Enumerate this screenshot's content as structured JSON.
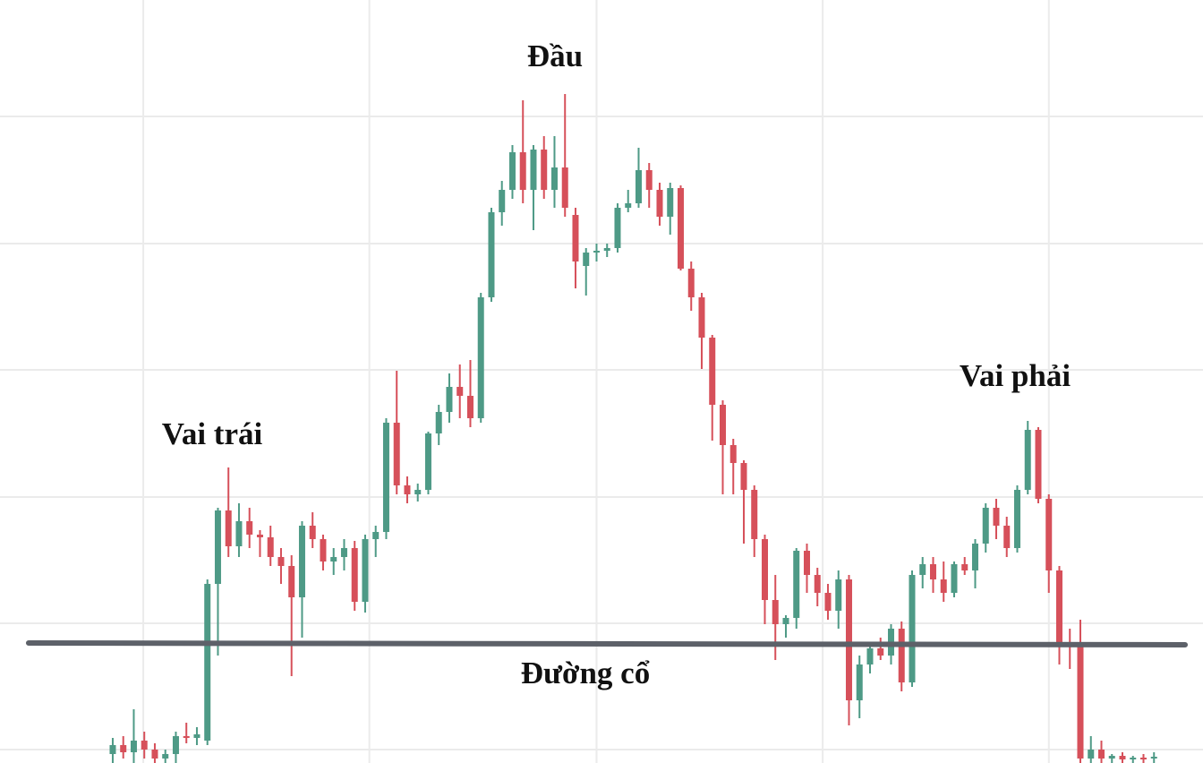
{
  "chart_data": {
    "type": "candlestick",
    "annotations": [
      "Vai trái",
      "Đầu",
      "Vai phải",
      "Đường cổ"
    ],
    "up_color": "#4e9a86",
    "down_color": "#d6505a",
    "neckline_color": "#5d6169",
    "grid": true,
    "xlim": [
      -10.72,
      103.66
    ],
    "ylim": [
      0,
      852
    ],
    "xticks": [
      2.9,
      24.4,
      46.0,
      67.5,
      89.0
    ],
    "yticks": [
      15,
      156,
      297,
      439,
      580,
      722
    ],
    "neckline": [
      [
        -8.0,
        134
      ],
      [
        101.96,
        132
      ]
    ],
    "candles": [
      [
        10,
        28,
        0,
        20
      ],
      [
        20,
        30,
        5,
        12
      ],
      [
        12,
        60,
        0,
        25
      ],
      [
        25,
        35,
        5,
        15
      ],
      [
        15,
        22,
        0,
        5
      ],
      [
        5,
        15,
        0,
        10
      ],
      [
        10,
        35,
        0,
        30
      ],
      [
        30,
        45,
        22,
        28
      ],
      [
        28,
        40,
        20,
        32
      ],
      [
        25,
        205,
        20,
        200
      ],
      [
        200,
        285,
        120,
        282
      ],
      [
        282,
        330,
        230,
        242
      ],
      [
        242,
        290,
        230,
        270
      ],
      [
        270,
        285,
        240,
        255
      ],
      [
        255,
        260,
        230,
        252
      ],
      [
        252,
        265,
        220,
        230
      ],
      [
        230,
        240,
        200,
        220
      ],
      [
        220,
        232,
        97,
        185
      ],
      [
        185,
        270,
        140,
        265
      ],
      [
        265,
        280,
        240,
        250
      ],
      [
        250,
        255,
        215,
        225
      ],
      [
        225,
        240,
        210,
        230
      ],
      [
        230,
        250,
        215,
        240
      ],
      [
        240,
        248,
        170,
        180
      ],
      [
        180,
        255,
        168,
        250
      ],
      [
        250,
        265,
        230,
        258
      ],
      [
        258,
        385,
        250,
        380
      ],
      [
        380,
        438,
        300,
        310
      ],
      [
        310,
        320,
        290,
        300
      ],
      [
        300,
        312,
        292,
        305
      ],
      [
        305,
        370,
        300,
        368
      ],
      [
        368,
        400,
        355,
        392
      ],
      [
        392,
        435,
        380,
        420
      ],
      [
        420,
        445,
        385,
        410
      ],
      [
        410,
        450,
        375,
        385
      ],
      [
        385,
        525,
        380,
        520
      ],
      [
        520,
        620,
        515,
        615
      ],
      [
        615,
        650,
        600,
        640
      ],
      [
        640,
        690,
        630,
        682
      ],
      [
        682,
        740,
        625,
        640
      ],
      [
        640,
        690,
        595,
        685
      ],
      [
        685,
        700,
        630,
        640
      ],
      [
        640,
        700,
        620,
        665
      ],
      [
        665,
        747,
        610,
        620
      ],
      [
        612,
        620,
        530,
        560
      ],
      [
        555,
        575,
        522,
        570
      ],
      [
        570,
        580,
        560,
        572
      ],
      [
        572,
        580,
        565,
        575
      ],
      [
        575,
        625,
        570,
        620
      ],
      [
        620,
        640,
        615,
        625
      ],
      [
        625,
        687,
        620,
        662
      ],
      [
        662,
        670,
        620,
        640
      ],
      [
        640,
        648,
        600,
        610
      ],
      [
        610,
        648,
        590,
        642
      ],
      [
        642,
        645,
        550,
        552
      ],
      [
        552,
        560,
        505,
        520
      ],
      [
        520,
        525,
        440,
        475
      ],
      [
        475,
        478,
        360,
        400
      ],
      [
        400,
        405,
        300,
        355
      ],
      [
        355,
        362,
        300,
        335
      ],
      [
        335,
        338,
        245,
        305
      ],
      [
        305,
        310,
        230,
        250
      ],
      [
        250,
        255,
        155,
        182
      ],
      [
        182,
        210,
        115,
        155
      ],
      [
        155,
        165,
        140,
        162
      ],
      [
        162,
        240,
        150,
        237
      ],
      [
        237,
        245,
        190,
        210
      ],
      [
        210,
        218,
        175,
        190
      ],
      [
        190,
        200,
        160,
        170
      ],
      [
        170,
        215,
        150,
        205
      ],
      [
        205,
        210,
        42,
        70
      ],
      [
        70,
        120,
        50,
        110
      ],
      [
        110,
        135,
        100,
        128
      ],
      [
        128,
        140,
        115,
        120
      ],
      [
        120,
        155,
        110,
        150
      ],
      [
        150,
        158,
        80,
        90
      ],
      [
        90,
        215,
        85,
        210
      ],
      [
        210,
        230,
        195,
        222
      ],
      [
        222,
        230,
        190,
        205
      ],
      [
        205,
        225,
        180,
        190
      ],
      [
        190,
        225,
        185,
        222
      ],
      [
        222,
        230,
        210,
        215
      ],
      [
        215,
        250,
        195,
        245
      ],
      [
        245,
        290,
        235,
        285
      ],
      [
        285,
        295,
        250,
        265
      ],
      [
        265,
        275,
        230,
        240
      ],
      [
        240,
        310,
        235,
        305
      ],
      [
        305,
        382,
        300,
        372
      ],
      [
        372,
        375,
        290,
        295
      ],
      [
        295,
        300,
        190,
        215
      ],
      [
        215,
        220,
        110,
        135
      ],
      [
        135,
        150,
        105,
        130
      ],
      [
        130,
        160,
        0,
        5
      ],
      [
        5,
        30,
        0,
        15
      ],
      [
        15,
        25,
        0,
        5
      ],
      [
        5,
        10,
        0,
        8
      ],
      [
        8,
        12,
        0,
        4
      ],
      [
        4,
        8,
        0,
        6
      ],
      [
        6,
        10,
        0,
        5
      ],
      [
        5,
        12,
        0,
        7
      ]
    ]
  }
}
